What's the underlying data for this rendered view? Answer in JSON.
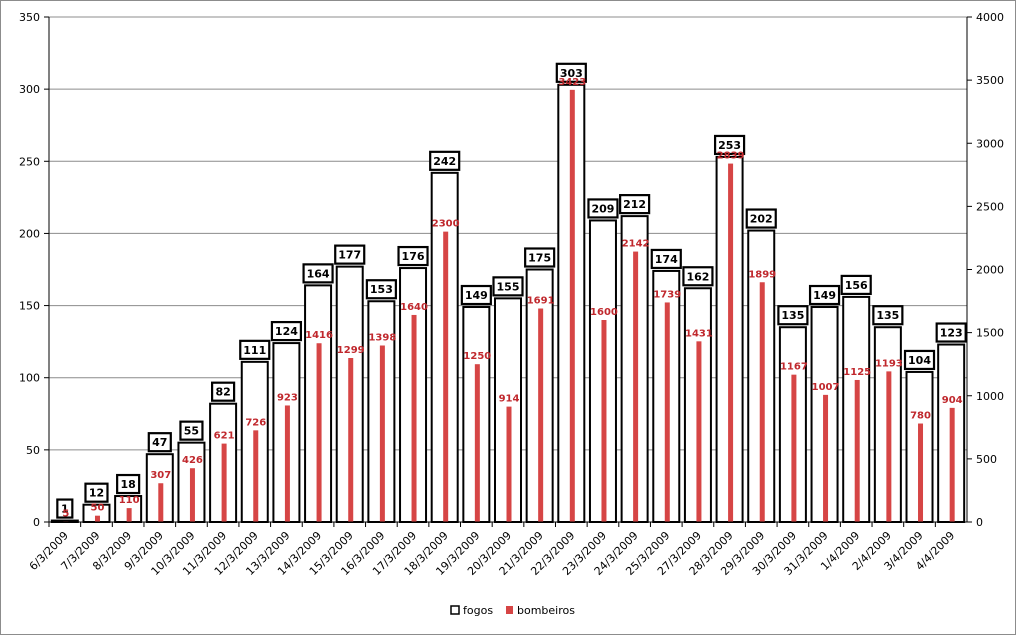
{
  "chart_data": {
    "type": "bar",
    "title": "",
    "xlabel": "",
    "ylabel": "",
    "categories": [
      "6/3/2009",
      "7/3/2009",
      "8/3/2009",
      "9/3/2009",
      "10/3/2009",
      "11/3/2009",
      "12/3/2009",
      "13/3/2009",
      "14/3/2009",
      "15/3/2009",
      "16/3/2009",
      "17/3/2009",
      "18/3/2009",
      "19/3/2009",
      "20/3/2009",
      "21/3/2009",
      "22/3/2009",
      "23/3/2009",
      "24/3/2009",
      "25/3/2009",
      "27/3/2009",
      "28/3/2009",
      "29/3/2009",
      "30/3/2009",
      "31/3/2009",
      "1/4/2009",
      "2/4/2009",
      "3/4/2009",
      "4/4/2009"
    ],
    "series": [
      {
        "name": "fogos",
        "axis": "left",
        "color": "#ffffff",
        "stroke": "#000000",
        "values": [
          1,
          12,
          18,
          47,
          55,
          82,
          111,
          124,
          164,
          177,
          153,
          176,
          242,
          149,
          155,
          175,
          303,
          209,
          212,
          174,
          162,
          253,
          202,
          135,
          149,
          156,
          135,
          104,
          123
        ]
      },
      {
        "name": "bombeiros",
        "axis": "right",
        "color": "#d64545",
        "values": [
          5,
          50,
          110,
          307,
          426,
          621,
          726,
          923,
          1416,
          1299,
          1398,
          1640,
          2300,
          1250,
          914,
          1691,
          3423,
          1600,
          2142,
          1739,
          1431,
          2839,
          1899,
          1167,
          1007,
          1125,
          1193,
          780,
          904
        ]
      }
    ],
    "ylim": [
      0,
      350
    ],
    "y_ticks": [
      "0",
      "50",
      "100",
      "150",
      "200",
      "250",
      "300",
      "350"
    ],
    "y2lim": [
      0,
      4000
    ],
    "y2_ticks": [
      "0",
      "500",
      "1000",
      "1500",
      "2000",
      "2500",
      "3000",
      "3500",
      "4000"
    ],
    "grid": true,
    "legend_position": "bottom"
  }
}
